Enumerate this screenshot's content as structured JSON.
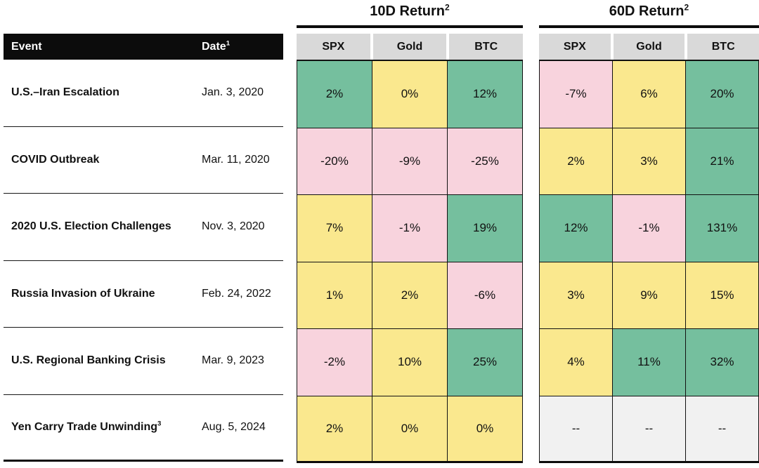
{
  "colors": {
    "positive_green": "#75bf9e",
    "neutral_yellow": "#fae88e",
    "negative_pink": "#f8d3dd",
    "na_gray": "#f1f1f1",
    "column_header_gray": "#d9d9d9",
    "header_black": "#0c0c0c"
  },
  "table": {
    "event_header": "Event",
    "date_header": "Date",
    "date_header_sup": "1",
    "groups": [
      {
        "title": "10D Return",
        "title_sup": "2",
        "columns": [
          "SPX",
          "Gold",
          "BTC"
        ]
      },
      {
        "title": "60D Return",
        "title_sup": "2",
        "columns": [
          "SPX",
          "Gold",
          "BTC"
        ]
      }
    ],
    "rows": [
      {
        "event": "U.S.–Iran Escalation",
        "event_sup": "",
        "date": "Jan. 3, 2020",
        "r10": [
          {
            "v": "2%",
            "c": "green"
          },
          {
            "v": "0%",
            "c": "yellow"
          },
          {
            "v": "12%",
            "c": "green"
          }
        ],
        "r60": [
          {
            "v": "-7%",
            "c": "pink"
          },
          {
            "v": "6%",
            "c": "yellow"
          },
          {
            "v": "20%",
            "c": "green"
          }
        ]
      },
      {
        "event": "COVID Outbreak",
        "event_sup": "",
        "date": "Mar. 11, 2020",
        "r10": [
          {
            "v": "-20%",
            "c": "pink"
          },
          {
            "v": "-9%",
            "c": "pink"
          },
          {
            "v": "-25%",
            "c": "pink"
          }
        ],
        "r60": [
          {
            "v": "2%",
            "c": "yellow"
          },
          {
            "v": "3%",
            "c": "yellow"
          },
          {
            "v": "21%",
            "c": "green"
          }
        ]
      },
      {
        "event": "2020 U.S. Election Challenges",
        "event_sup": "",
        "date": "Nov. 3, 2020",
        "r10": [
          {
            "v": "7%",
            "c": "yellow"
          },
          {
            "v": "-1%",
            "c": "pink"
          },
          {
            "v": "19%",
            "c": "green"
          }
        ],
        "r60": [
          {
            "v": "12%",
            "c": "green"
          },
          {
            "v": "-1%",
            "c": "pink"
          },
          {
            "v": "131%",
            "c": "green"
          }
        ]
      },
      {
        "event": "Russia Invasion of Ukraine",
        "event_sup": "",
        "date": "Feb. 24, 2022",
        "r10": [
          {
            "v": "1%",
            "c": "yellow"
          },
          {
            "v": "2%",
            "c": "yellow"
          },
          {
            "v": "-6%",
            "c": "pink"
          }
        ],
        "r60": [
          {
            "v": "3%",
            "c": "yellow"
          },
          {
            "v": "9%",
            "c": "yellow"
          },
          {
            "v": "15%",
            "c": "yellow"
          }
        ]
      },
      {
        "event": "U.S. Regional Banking Crisis",
        "event_sup": "",
        "date": "Mar. 9, 2023",
        "r10": [
          {
            "v": "-2%",
            "c": "pink"
          },
          {
            "v": "10%",
            "c": "yellow"
          },
          {
            "v": "25%",
            "c": "green"
          }
        ],
        "r60": [
          {
            "v": "4%",
            "c": "yellow"
          },
          {
            "v": "11%",
            "c": "green"
          },
          {
            "v": "32%",
            "c": "green"
          }
        ]
      },
      {
        "event": "Yen Carry Trade Unwinding",
        "event_sup": "3",
        "date": "Aug. 5, 2024",
        "r10": [
          {
            "v": "2%",
            "c": "yellow"
          },
          {
            "v": "0%",
            "c": "yellow"
          },
          {
            "v": "0%",
            "c": "yellow"
          }
        ],
        "r60": [
          {
            "v": "--",
            "c": "gray"
          },
          {
            "v": "--",
            "c": "gray"
          },
          {
            "v": "--",
            "c": "gray"
          }
        ]
      }
    ]
  },
  "chart_data": {
    "type": "table",
    "column_groups": [
      {
        "label": "10D Return",
        "columns": [
          "SPX",
          "Gold",
          "BTC"
        ]
      },
      {
        "label": "60D Return",
        "columns": [
          "SPX",
          "Gold",
          "BTC"
        ]
      }
    ],
    "row_header_columns": [
      "Event",
      "Date"
    ],
    "rows": [
      {
        "event": "U.S.–Iran Escalation",
        "date": "Jan. 3, 2020",
        "returns_10d": {
          "SPX": "2%",
          "Gold": "0%",
          "BTC": "12%"
        },
        "returns_60d": {
          "SPX": "-7%",
          "Gold": "6%",
          "BTC": "20%"
        }
      },
      {
        "event": "COVID Outbreak",
        "date": "Mar. 11, 2020",
        "returns_10d": {
          "SPX": "-20%",
          "Gold": "-9%",
          "BTC": "-25%"
        },
        "returns_60d": {
          "SPX": "2%",
          "Gold": "3%",
          "BTC": "21%"
        }
      },
      {
        "event": "2020 U.S. Election Challenges",
        "date": "Nov. 3, 2020",
        "returns_10d": {
          "SPX": "7%",
          "Gold": "-1%",
          "BTC": "19%"
        },
        "returns_60d": {
          "SPX": "12%",
          "Gold": "-1%",
          "BTC": "131%"
        }
      },
      {
        "event": "Russia Invasion of Ukraine",
        "date": "Feb. 24, 2022",
        "returns_10d": {
          "SPX": "1%",
          "Gold": "2%",
          "BTC": "-6%"
        },
        "returns_60d": {
          "SPX": "3%",
          "Gold": "9%",
          "BTC": "15%"
        }
      },
      {
        "event": "U.S. Regional Banking Crisis",
        "date": "Mar. 9, 2023",
        "returns_10d": {
          "SPX": "-2%",
          "Gold": "10%",
          "BTC": "25%"
        },
        "returns_60d": {
          "SPX": "4%",
          "Gold": "11%",
          "BTC": "32%"
        }
      },
      {
        "event": "Yen Carry Trade Unwinding",
        "date": "Aug. 5, 2024",
        "returns_10d": {
          "SPX": "2%",
          "Gold": "0%",
          "BTC": "0%"
        },
        "returns_60d": {
          "SPX": "--",
          "Gold": "--",
          "BTC": "--"
        }
      }
    ]
  }
}
